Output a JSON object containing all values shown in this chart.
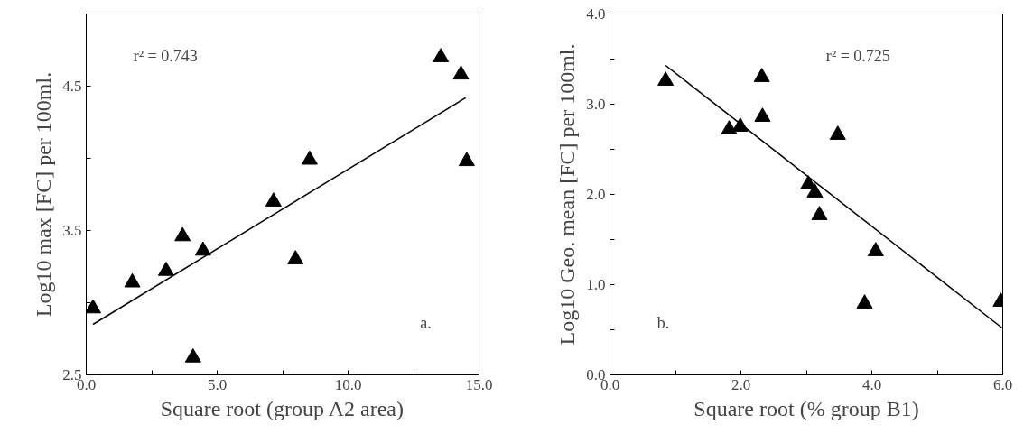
{
  "chart_data": [
    {
      "type": "scatter",
      "xlabel": "Square root (group A2 area)",
      "ylabel": "Log10 max [FC] per 100ml.",
      "annotations": [
        "r² = 0.743",
        "a."
      ],
      "grid": false,
      "xlim": [
        0,
        15
      ],
      "ylim": [
        2.5,
        5.0
      ],
      "xticks": [
        {
          "value": 0,
          "label": "0.0"
        },
        {
          "value": 2.5,
          "label": null
        },
        {
          "value": 5,
          "label": "5.0"
        },
        {
          "value": 7.5,
          "label": null
        },
        {
          "value": 10,
          "label": "10.0"
        },
        {
          "value": 12.5,
          "label": null
        },
        {
          "value": 15,
          "label": "15.0"
        }
      ],
      "yticks": [
        {
          "value": 2.5,
          "label": "2.5"
        },
        {
          "value": 3.0,
          "label": null
        },
        {
          "value": 3.5,
          "label": "3.5"
        },
        {
          "value": 4.0,
          "label": null
        },
        {
          "value": 4.5,
          "label": "4.5"
        }
      ],
      "series": [
        {
          "marker": "triangle",
          "color": "#000000",
          "x": [
            0.26,
            1.76,
            3.05,
            3.68,
            4.46,
            4.08,
            7.15,
            7.99,
            8.53,
            13.54,
            14.31,
            14.53
          ],
          "values": [
            2.96,
            3.14,
            3.22,
            3.46,
            3.36,
            2.62,
            3.7,
            3.3,
            3.99,
            4.7,
            4.58,
            3.98
          ]
        },
        {
          "type": "line",
          "color": "#000000",
          "x": [
            0.26,
            14.49
          ],
          "values": [
            2.85,
            4.42
          ]
        }
      ]
    },
    {
      "type": "scatter",
      "xlabel": "Square root (% group B1)",
      "ylabel": "Log10 Geo. mean [FC] per 100ml.",
      "annotations": [
        "r² = 0.725",
        "b."
      ],
      "grid": false,
      "xlim": [
        0,
        6
      ],
      "ylim": [
        0,
        4
      ],
      "xticks": [
        {
          "value": 0,
          "label": "0.0"
        },
        {
          "value": 1,
          "label": null
        },
        {
          "value": 2,
          "label": "2.0"
        },
        {
          "value": 3,
          "label": null
        },
        {
          "value": 4,
          "label": "4.0"
        },
        {
          "value": 5,
          "label": null
        },
        {
          "value": 6,
          "label": "6.0"
        }
      ],
      "yticks": [
        {
          "value": 0,
          "label": "0.0"
        },
        {
          "value": 0.5,
          "label": null
        },
        {
          "value": 1,
          "label": "1.0"
        },
        {
          "value": 1.5,
          "label": null
        },
        {
          "value": 2,
          "label": "2.0"
        },
        {
          "value": 2.5,
          "label": null
        },
        {
          "value": 3,
          "label": "3.0"
        },
        {
          "value": 3.5,
          "label": null
        },
        {
          "value": 4,
          "label": "4.0"
        }
      ],
      "series": [
        {
          "marker": "triangle",
          "color": "#000000",
          "x": [
            0.85,
            1.82,
            1.99,
            2.32,
            2.33,
            3.48,
            3.03,
            3.13,
            3.2,
            4.06,
            3.89,
            5.97
          ],
          "values": [
            3.26,
            2.72,
            2.75,
            3.3,
            2.86,
            2.66,
            2.11,
            2.02,
            1.77,
            1.37,
            0.79,
            0.81
          ]
        },
        {
          "type": "line",
          "color": "#000000",
          "x": [
            0.85,
            5.99
          ],
          "values": [
            3.43,
            0.52
          ]
        }
      ]
    }
  ]
}
